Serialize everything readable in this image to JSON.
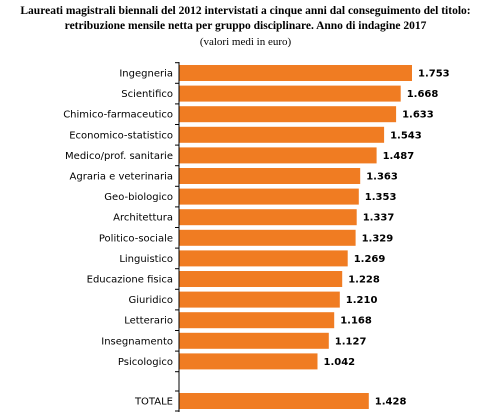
{
  "title_line1": "Laureati magistrali biennali del 2012 intervistati a cinque anni dal conseguimento del titolo:",
  "title_line2": "retribuzione mensile netta per gruppo disciplinare. Anno di indagine 2017",
  "subtitle": "(valori medi in euro)",
  "colors": {
    "bar": "#F07C22",
    "axis": "#000000"
  },
  "chart_data": {
    "type": "bar",
    "orientation": "horizontal",
    "categories": [
      "Ingegneria",
      "Scientifico",
      "Chimico-farmaceutico",
      "Economico-statistico",
      "Medico/prof. sanitarie",
      "Agraria e veterinaria",
      "Geo-biologico",
      "Architettura",
      "Politico-sociale",
      "Linguistico",
      "Educazione fisica",
      "Giuridico",
      "Letterario",
      "Insegnamento",
      "Psicologico"
    ],
    "values": [
      1753,
      1668,
      1633,
      1543,
      1487,
      1363,
      1353,
      1337,
      1329,
      1269,
      1228,
      1210,
      1168,
      1127,
      1042
    ],
    "value_labels": [
      "1.753",
      "1.668",
      "1.633",
      "1.543",
      "1.487",
      "1.363",
      "1.353",
      "1.337",
      "1.329",
      "1.269",
      "1.228",
      "1.210",
      "1.168",
      "1.127",
      "1.042"
    ],
    "total": {
      "category": "TOTALE",
      "value": 1428,
      "label": "1.428"
    },
    "xlim": [
      0,
      1753
    ],
    "grid": false,
    "legend": "none"
  }
}
